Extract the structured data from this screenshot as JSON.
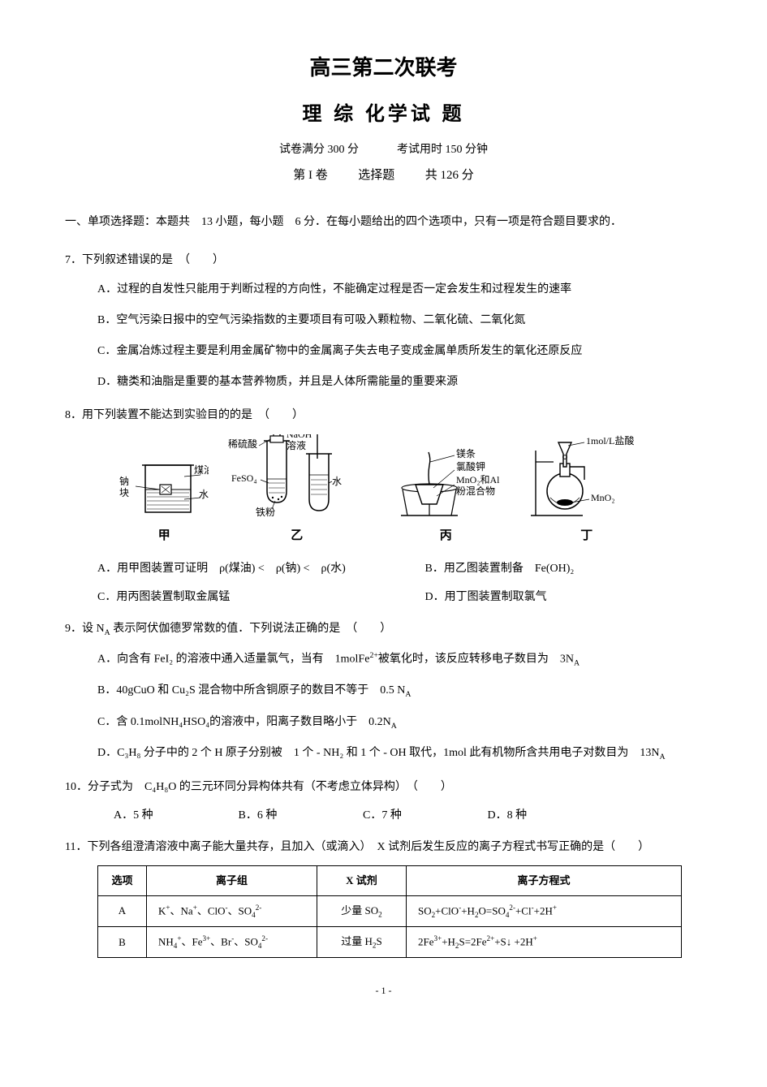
{
  "header": {
    "title_main": "高三第二次联考",
    "title_sub": "理 综 化学试 题",
    "full_marks_label": "试卷满分",
    "full_marks_value": "300 分",
    "time_label": "考试用时",
    "time_value": "150 分钟",
    "part_label": "第 I 卷",
    "part_type": "选择题",
    "part_score": "共 126 分"
  },
  "instruction": "一、单项选择题：本题共　13 小题，每小题　6 分．在每小题给出的四个选项中，只有一项是符合题目要求的．",
  "q7": {
    "stem": "7．下列叙述错误的是　（　　）",
    "A": "A．过程的自发性只能用于判断过程的方向性，不能确定过程是否一定会发生和过程发生的速率",
    "B": "B．空气污染日报中的空气污染指数的主要项目有可吸入颗粒物、二氧化硫、二氧化氮",
    "C": "C．金属冶炼过程主要是利用金属矿物中的金属离子失去电子变成金属单质所发生的氧化还原反应",
    "D": "D．糖类和油脂是重要的基本营养物质，并且是人体所需能量的重要来源"
  },
  "q8": {
    "stem": "8．用下列装置不能达到实验目的的是　（　　）",
    "diagrams": {
      "jia": {
        "labels": {
          "left": "钠块",
          "right_top": "煤油",
          "right_bottom": "水"
        },
        "caption": "甲"
      },
      "yi": {
        "labels": {
          "top_left": "稀硫酸",
          "top_right": "NaOH",
          "top_right2": "溶液",
          "mid": "FeSO₄",
          "bottom": "铁粉",
          "right": "水"
        },
        "caption": "乙"
      },
      "bing": {
        "labels": {
          "l1": "镁条",
          "l2": "氯酸钾",
          "l3": "MnO₂和Al",
          "l4": "粉混合物"
        },
        "caption": "丙"
      },
      "ding": {
        "labels": {
          "top": "1mol/L盐酸",
          "mid": "MnO₂"
        },
        "caption": "丁"
      }
    },
    "A": "A．用甲图装置可证明　ρ(煤油) <　ρ(钠) <　ρ(水)",
    "B": "B．用乙图装置制备　Fe(OH)₂",
    "C": "C．用丙图装置制取金属锰",
    "D": "D．用丁图装置制取氯气"
  },
  "q9": {
    "stem_prefix": "9．设 N",
    "stem_sub": "A",
    "stem_suffix": " 表示阿伏伽德罗常数的值．下列说法正确的是　（　　）",
    "A_pre": "A．向含有 FeI₂ 的溶液中通入适量氯气，当有　1molFe",
    "A_sup": "2+",
    "A_mid": "被氧化时，该反应转移电子数目为　3N",
    "A_sub": "A",
    "B_pre": "B．40gCuO 和 Cu₂S 混合物中所含铜原子的数目不等于　0.5 N",
    "B_sub": "A",
    "C_pre": "C．含 0.1molNH₄HSO₄的溶液中，阳离子数目略小于　0.2N",
    "C_sub": "A",
    "D_pre": "D．C₃H₈ 分子中的 2 个 H 原子分别被　1 个 - NH₂ 和 1 个 - OH 取代，1mol 此有机物所含共用电子对数目为　13N",
    "D_sub": "A"
  },
  "q10": {
    "stem": "10．分子式为　C₄H₈O 的三元环同分异构体共有（不考虑立体异构）　（　　）",
    "A": "A．5 种",
    "B": "B．6 种",
    "C": "C．7 种",
    "D": "D．8 种"
  },
  "q11": {
    "stem": "11．下列各组澄清溶液中离子能大量共存，且加入（或滴入）　X 试剂后发生反应的离子方程式书写正确的是（　　）",
    "table": {
      "headers": [
        "选项",
        "离子组",
        "X 试剂",
        "离子方程式"
      ],
      "rows": [
        {
          "opt": "A",
          "ions_html": "K<span class=\"sup\">+</span>、Na<span class=\"sup\">+</span>、ClO<span class=\"sup\">-</span>、SO<span class=\"sub\">4</span><span class=\"sup\">2-</span>",
          "reagent_html": "少量 SO<span class=\"sub\">2</span>",
          "eq_html": "SO<span class=\"sub\">2</span>+ClO<span class=\"sup\">-</span>+H<span class=\"sub\">2</span>O=SO<span class=\"sub\">4</span><span class=\"sup\">2-</span>+Cl<span class=\"sup\">-</span>+2H<span class=\"sup\">+</span>"
        },
        {
          "opt": "B",
          "ions_html": "NH<span class=\"sub\">4</span><span class=\"sup\">+</span>、Fe<span class=\"sup\">3+</span>、Br<span class=\"sup\">-</span>、SO<span class=\"sub\">4</span><span class=\"sup\">2-</span>",
          "reagent_html": "过量 H<span class=\"sub\">2</span>S",
          "eq_html": "2Fe<span class=\"sup\">3+</span>+H<span class=\"sub\">2</span>S=2Fe<span class=\"sup\">2+</span>+S↓ +2H<span class=\"sup\">+</span>"
        }
      ]
    }
  },
  "page_number": "- 1 -",
  "colors": {
    "text": "#000000",
    "background": "#ffffff",
    "border": "#000000"
  }
}
